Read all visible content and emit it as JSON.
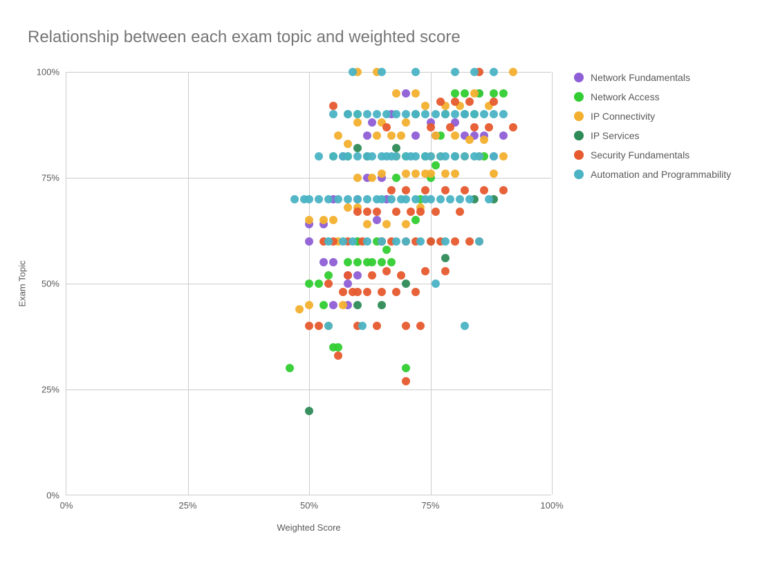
{
  "chart": {
    "type": "scatter",
    "title": "Relationship between each exam topic and weighted score",
    "title_fontsize": 24,
    "title_color": "#757575",
    "xlabel": "Weighted Score",
    "ylabel": "Exam Topic",
    "label_fontsize": 13,
    "tick_fontsize": 13,
    "axis_label_color": "#595959",
    "background_color": "#ffffff",
    "grid_color": "#cccccc",
    "xlim": [
      0,
      100
    ],
    "ylim": [
      0,
      100
    ],
    "xtick_step": 25,
    "ytick_step": 25,
    "xticks": [
      "0%",
      "25%",
      "50%",
      "75%",
      "100%"
    ],
    "yticks": [
      "0%",
      "25%",
      "50%",
      "75%",
      "100%"
    ],
    "marker_size": 12,
    "legend_position": "right",
    "series": [
      {
        "name": "Network Fundamentals",
        "color": "#8e5ed6",
        "points": [
          [
            50,
            64
          ],
          [
            53,
            64
          ],
          [
            50,
            60
          ],
          [
            53,
            55
          ],
          [
            55,
            55
          ],
          [
            57,
            80
          ],
          [
            58,
            52
          ],
          [
            58,
            50
          ],
          [
            60,
            52
          ],
          [
            60,
            60
          ],
          [
            60,
            70
          ],
          [
            62,
            75
          ],
          [
            62,
            85
          ],
          [
            63,
            88
          ],
          [
            64,
            65
          ],
          [
            65,
            60
          ],
          [
            65,
            75
          ],
          [
            66,
            70
          ],
          [
            67,
            90
          ],
          [
            70,
            95
          ],
          [
            72,
            85
          ],
          [
            74,
            80
          ],
          [
            75,
            88
          ],
          [
            76,
            85
          ],
          [
            78,
            90
          ],
          [
            80,
            88
          ],
          [
            82,
            85
          ],
          [
            84,
            85
          ],
          [
            86,
            85
          ],
          [
            85,
            95
          ],
          [
            88,
            80
          ],
          [
            90,
            85
          ],
          [
            58,
            45
          ],
          [
            55,
            45
          ],
          [
            55,
            70
          ]
        ]
      },
      {
        "name": "Network Access",
        "color": "#32cd32",
        "points": [
          [
            46,
            30
          ],
          [
            50,
            50
          ],
          [
            52,
            50
          ],
          [
            53,
            45
          ],
          [
            54,
            52
          ],
          [
            55,
            35
          ],
          [
            56,
            35
          ],
          [
            58,
            55
          ],
          [
            60,
            55
          ],
          [
            60,
            60
          ],
          [
            62,
            55
          ],
          [
            63,
            55
          ],
          [
            64,
            60
          ],
          [
            65,
            55
          ],
          [
            66,
            58
          ],
          [
            67,
            55
          ],
          [
            68,
            75
          ],
          [
            70,
            30
          ],
          [
            70,
            80
          ],
          [
            72,
            65
          ],
          [
            73,
            70
          ],
          [
            74,
            80
          ],
          [
            75,
            75
          ],
          [
            76,
            78
          ],
          [
            77,
            85
          ],
          [
            78,
            90
          ],
          [
            80,
            95
          ],
          [
            82,
            95
          ],
          [
            84,
            90
          ],
          [
            85,
            95
          ],
          [
            86,
            80
          ],
          [
            88,
            95
          ],
          [
            90,
            95
          ],
          [
            60,
            90
          ],
          [
            55,
            80
          ],
          [
            58,
            80
          ]
        ]
      },
      {
        "name": "IP Connectivity",
        "color": "#f2b02e",
        "points": [
          [
            48,
            44
          ],
          [
            50,
            45
          ],
          [
            53,
            65
          ],
          [
            54,
            40
          ],
          [
            55,
            65
          ],
          [
            56,
            60
          ],
          [
            57,
            45
          ],
          [
            58,
            68
          ],
          [
            58,
            83
          ],
          [
            60,
            68
          ],
          [
            60,
            75
          ],
          [
            60,
            88
          ],
          [
            62,
            64
          ],
          [
            62,
            80
          ],
          [
            63,
            75
          ],
          [
            64,
            85
          ],
          [
            65,
            76
          ],
          [
            65,
            88
          ],
          [
            66,
            64
          ],
          [
            67,
            85
          ],
          [
            68,
            80
          ],
          [
            68,
            95
          ],
          [
            69,
            85
          ],
          [
            70,
            64
          ],
          [
            70,
            76
          ],
          [
            70,
            88
          ],
          [
            72,
            76
          ],
          [
            72,
            95
          ],
          [
            73,
            68
          ],
          [
            74,
            76
          ],
          [
            74,
            92
          ],
          [
            75,
            80
          ],
          [
            75,
            76
          ],
          [
            76,
            85
          ],
          [
            77,
            80
          ],
          [
            78,
            76
          ],
          [
            78,
            92
          ],
          [
            80,
            76
          ],
          [
            80,
            85
          ],
          [
            81,
            92
          ],
          [
            82,
            80
          ],
          [
            83,
            84
          ],
          [
            84,
            95
          ],
          [
            85,
            80
          ],
          [
            86,
            84
          ],
          [
            87,
            92
          ],
          [
            88,
            76
          ],
          [
            90,
            80
          ],
          [
            92,
            100
          ],
          [
            60,
            100
          ],
          [
            64,
            100
          ],
          [
            50,
            65
          ],
          [
            56,
            85
          ]
        ]
      },
      {
        "name": "IP Services",
        "color": "#2e8b57",
        "points": [
          [
            50,
            20
          ],
          [
            60,
            45
          ],
          [
            62,
            80
          ],
          [
            65,
            45
          ],
          [
            65,
            60
          ],
          [
            68,
            82
          ],
          [
            70,
            50
          ],
          [
            72,
            90
          ],
          [
            75,
            60
          ],
          [
            78,
            56
          ],
          [
            80,
            80
          ],
          [
            82,
            90
          ],
          [
            84,
            70
          ],
          [
            88,
            70
          ],
          [
            58,
            90
          ],
          [
            60,
            82
          ]
        ]
      },
      {
        "name": "Security Fundamentals",
        "color": "#e65a2e",
        "points": [
          [
            50,
            40
          ],
          [
            52,
            40
          ],
          [
            53,
            60
          ],
          [
            54,
            50
          ],
          [
            55,
            60
          ],
          [
            56,
            33
          ],
          [
            57,
            48
          ],
          [
            58,
            52
          ],
          [
            58,
            60
          ],
          [
            59,
            48
          ],
          [
            60,
            40
          ],
          [
            60,
            48
          ],
          [
            60,
            67
          ],
          [
            61,
            60
          ],
          [
            62,
            48
          ],
          [
            62,
            67
          ],
          [
            63,
            52
          ],
          [
            64,
            40
          ],
          [
            64,
            67
          ],
          [
            65,
            48
          ],
          [
            65,
            60
          ],
          [
            66,
            53
          ],
          [
            66,
            87
          ],
          [
            67,
            60
          ],
          [
            67,
            72
          ],
          [
            68,
            48
          ],
          [
            68,
            67
          ],
          [
            69,
            52
          ],
          [
            70,
            27
          ],
          [
            70,
            40
          ],
          [
            70,
            60
          ],
          [
            70,
            72
          ],
          [
            71,
            67
          ],
          [
            72,
            48
          ],
          [
            72,
            60
          ],
          [
            73,
            40
          ],
          [
            73,
            67
          ],
          [
            74,
            53
          ],
          [
            74,
            72
          ],
          [
            75,
            60
          ],
          [
            75,
            87
          ],
          [
            76,
            67
          ],
          [
            77,
            60
          ],
          [
            77,
            93
          ],
          [
            78,
            53
          ],
          [
            78,
            72
          ],
          [
            79,
            87
          ],
          [
            80,
            60
          ],
          [
            80,
            93
          ],
          [
            81,
            67
          ],
          [
            82,
            72
          ],
          [
            83,
            60
          ],
          [
            83,
            93
          ],
          [
            84,
            87
          ],
          [
            85,
            60
          ],
          [
            85,
            100
          ],
          [
            86,
            72
          ],
          [
            87,
            87
          ],
          [
            88,
            93
          ],
          [
            90,
            72
          ],
          [
            92,
            87
          ],
          [
            55,
            92
          ]
        ]
      },
      {
        "name": "Automation and Programmability",
        "color": "#4ab3c4",
        "points": [
          [
            47,
            70
          ],
          [
            49,
            70
          ],
          [
            50,
            70
          ],
          [
            52,
            70
          ],
          [
            52,
            80
          ],
          [
            54,
            40
          ],
          [
            54,
            60
          ],
          [
            54,
            70
          ],
          [
            55,
            80
          ],
          [
            55,
            90
          ],
          [
            56,
            70
          ],
          [
            57,
            60
          ],
          [
            57,
            80
          ],
          [
            58,
            70
          ],
          [
            58,
            80
          ],
          [
            58,
            90
          ],
          [
            59,
            60
          ],
          [
            60,
            70
          ],
          [
            60,
            80
          ],
          [
            60,
            90
          ],
          [
            61,
            40
          ],
          [
            62,
            60
          ],
          [
            62,
            70
          ],
          [
            62,
            80
          ],
          [
            62,
            90
          ],
          [
            63,
            80
          ],
          [
            64,
            70
          ],
          [
            64,
            90
          ],
          [
            65,
            60
          ],
          [
            65,
            70
          ],
          [
            65,
            80
          ],
          [
            66,
            80
          ],
          [
            66,
            90
          ],
          [
            67,
            70
          ],
          [
            67,
            80
          ],
          [
            68,
            60
          ],
          [
            68,
            80
          ],
          [
            68,
            90
          ],
          [
            69,
            70
          ],
          [
            70,
            60
          ],
          [
            70,
            70
          ],
          [
            70,
            80
          ],
          [
            70,
            90
          ],
          [
            71,
            80
          ],
          [
            72,
            70
          ],
          [
            72,
            80
          ],
          [
            72,
            90
          ],
          [
            73,
            60
          ],
          [
            74,
            70
          ],
          [
            74,
            80
          ],
          [
            74,
            90
          ],
          [
            75,
            70
          ],
          [
            75,
            80
          ],
          [
            76,
            90
          ],
          [
            77,
            70
          ],
          [
            77,
            80
          ],
          [
            78,
            60
          ],
          [
            78,
            80
          ],
          [
            78,
            90
          ],
          [
            79,
            70
          ],
          [
            80,
            80
          ],
          [
            80,
            90
          ],
          [
            81,
            70
          ],
          [
            82,
            80
          ],
          [
            82,
            90
          ],
          [
            83,
            70
          ],
          [
            84,
            80
          ],
          [
            84,
            90
          ],
          [
            85,
            60
          ],
          [
            85,
            80
          ],
          [
            86,
            90
          ],
          [
            87,
            70
          ],
          [
            88,
            80
          ],
          [
            88,
            90
          ],
          [
            90,
            90
          ],
          [
            82,
            40
          ],
          [
            76,
            50
          ],
          [
            59,
            100
          ],
          [
            65,
            100
          ],
          [
            72,
            100
          ],
          [
            80,
            100
          ],
          [
            84,
            100
          ],
          [
            88,
            100
          ]
        ]
      }
    ]
  }
}
